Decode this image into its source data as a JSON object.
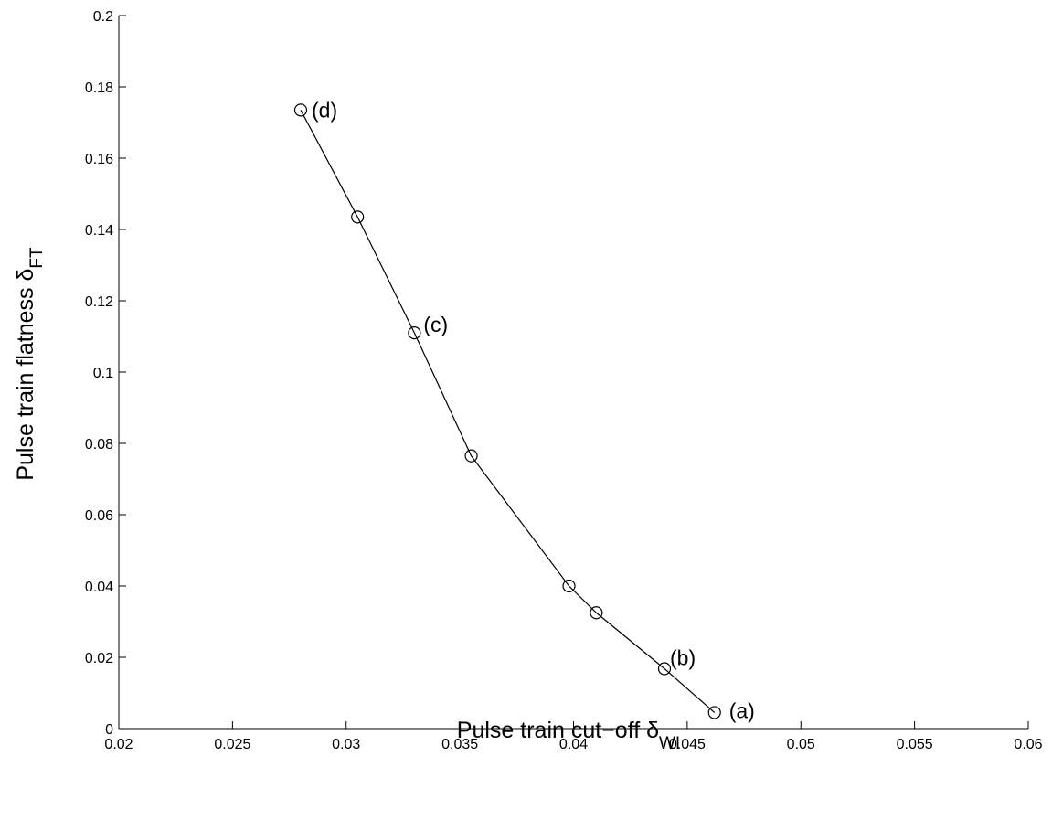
{
  "chart_data": {
    "type": "line",
    "xlabel": {
      "main": "Pulse train cut−off  δ",
      "sub": "WI"
    },
    "ylabel": {
      "main": "Pulse train flatness δ",
      "sub": "FT"
    },
    "xlim": [
      0.02,
      0.06
    ],
    "ylim": [
      0,
      0.2
    ],
    "xticks": [
      0.02,
      0.025,
      0.03,
      0.035,
      0.04,
      0.045,
      0.05,
      0.055,
      0.06
    ],
    "xtick_labels": [
      "0.02",
      "0.025",
      "0.03",
      "0.035",
      "0.04",
      "0.045",
      "0.05",
      "0.055",
      "0.06"
    ],
    "yticks": [
      0,
      0.02,
      0.04,
      0.06,
      0.08,
      0.1,
      0.12,
      0.14,
      0.16,
      0.18,
      0.2
    ],
    "ytick_labels": [
      "0",
      "0.02",
      "0.04",
      "0.06",
      "0.08",
      "0.1",
      "0.12",
      "0.14",
      "0.16",
      "0.18",
      "0.2"
    ],
    "grid": false,
    "series": [
      {
        "marker": "circle",
        "color": "#000000",
        "points": [
          {
            "x": 0.028,
            "y": 0.1735
          },
          {
            "x": 0.0305,
            "y": 0.1435
          },
          {
            "x": 0.033,
            "y": 0.111
          },
          {
            "x": 0.0355,
            "y": 0.0765
          },
          {
            "x": 0.0398,
            "y": 0.04
          },
          {
            "x": 0.041,
            "y": 0.0325
          },
          {
            "x": 0.044,
            "y": 0.0168
          },
          {
            "x": 0.0462,
            "y": 0.0045
          }
        ]
      }
    ],
    "annotations": [
      {
        "text": "(d)",
        "x": 0.028,
        "y": 0.1735,
        "dx": 12,
        "dy": 8
      },
      {
        "text": "(c)",
        "x": 0.033,
        "y": 0.111,
        "dx": 10,
        "dy": -1
      },
      {
        "text": "(b)",
        "x": 0.044,
        "y": 0.0168,
        "dx": 6,
        "dy": -4
      },
      {
        "text": "(a)",
        "x": 0.0462,
        "y": 0.0045,
        "dx": 16,
        "dy": 6
      }
    ]
  }
}
